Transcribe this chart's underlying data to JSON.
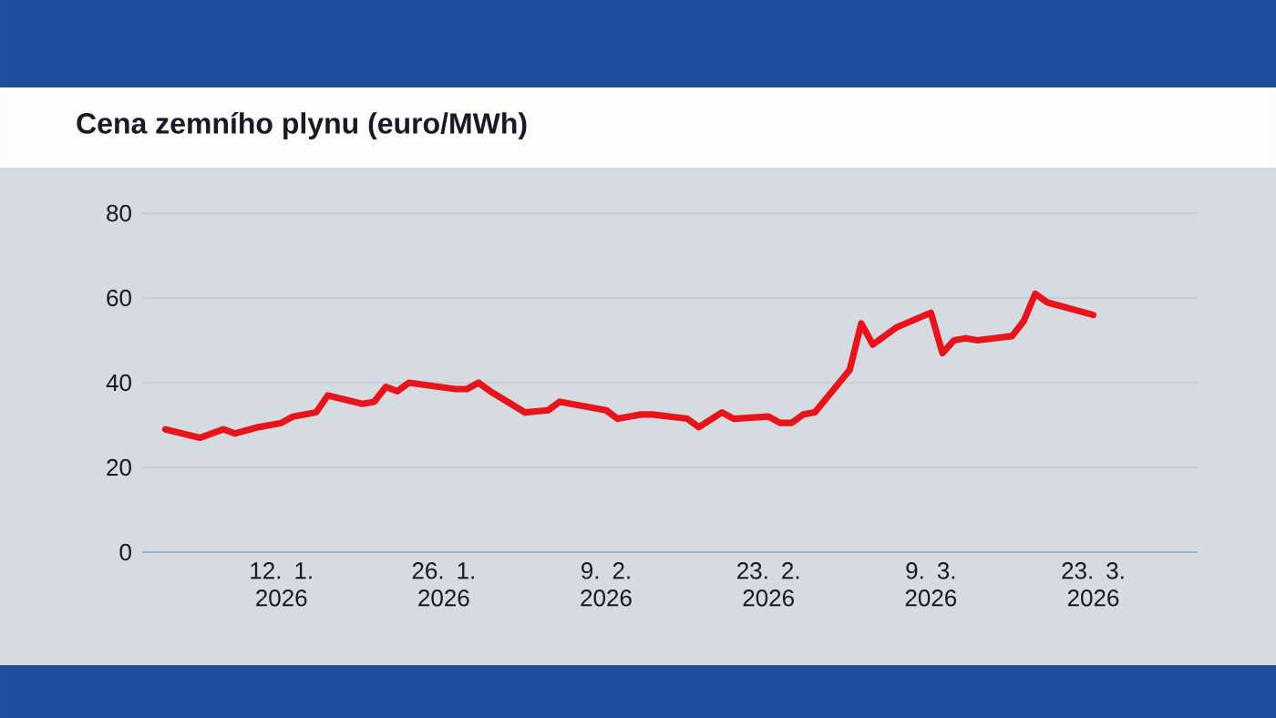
{
  "chart_data": {
    "type": "line",
    "title": "Cena zemního plynu (euro/MWh)",
    "x": [
      "2026-01-02",
      "2026-01-05",
      "2026-01-07",
      "2026-01-08",
      "2026-01-10",
      "2026-01-12",
      "2026-01-13",
      "2026-01-15",
      "2026-01-16",
      "2026-01-19",
      "2026-01-20",
      "2026-01-21",
      "2026-01-22",
      "2026-01-23",
      "2026-01-27",
      "2026-01-28",
      "2026-01-29",
      "2026-01-30",
      "2026-02-02",
      "2026-02-04",
      "2026-02-05",
      "2026-02-09",
      "2026-02-10",
      "2026-02-12",
      "2026-02-13",
      "2026-02-16",
      "2026-02-17",
      "2026-02-19",
      "2026-02-20",
      "2026-02-23",
      "2026-02-24",
      "2026-02-25",
      "2026-02-26",
      "2026-02-27",
      "2026-03-02",
      "2026-03-03",
      "2026-03-04",
      "2026-03-06",
      "2026-03-09",
      "2026-03-10",
      "2026-03-11",
      "2026-03-12",
      "2026-03-13",
      "2026-03-16",
      "2026-03-17",
      "2026-03-18",
      "2026-03-19",
      "2026-03-23"
    ],
    "series": [
      {
        "color": "#e8141b",
        "values": [
          29,
          27,
          29,
          28,
          29.5,
          30.5,
          32,
          33,
          37,
          35,
          35.5,
          39,
          38,
          40,
          38.5,
          38.5,
          40,
          38,
          33,
          33.5,
          35.5,
          33.5,
          31.5,
          32.5,
          32.5,
          31.5,
          29.5,
          33,
          31.5,
          32,
          30.5,
          30.5,
          32.5,
          33,
          43,
          54,
          49,
          53,
          56.5,
          47,
          50,
          50.5,
          50,
          51,
          54.5,
          61,
          59,
          56
        ]
      }
    ],
    "xlim": [
      "2025-12-31",
      "2026-04-01"
    ],
    "xticks": [
      {
        "value": "2026-01-12",
        "label": "12. 1. 2026"
      },
      {
        "value": "2026-01-26",
        "label": "26. 1. 2026"
      },
      {
        "value": "2026-02-09",
        "label": "9. 2. 2026"
      },
      {
        "value": "2026-02-23",
        "label": "23. 2. 2026"
      },
      {
        "value": "2026-03-09",
        "label": "9. 3. 2026"
      },
      {
        "value": "2026-03-23",
        "label": "23. 3. 2026"
      }
    ],
    "ylim": [
      0,
      80
    ],
    "yticks": [
      0,
      20,
      40,
      60,
      80
    ],
    "grid": "y"
  }
}
